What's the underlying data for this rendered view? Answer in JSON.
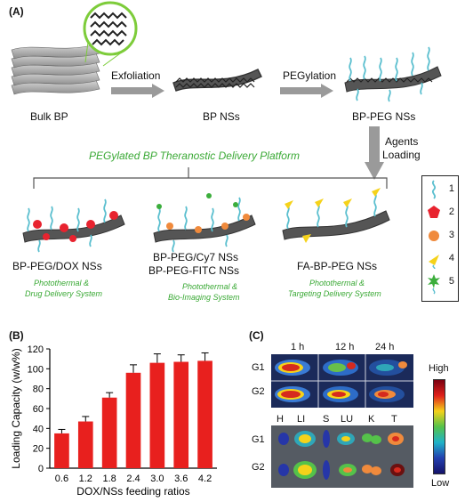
{
  "panel_a": {
    "label": "(A)",
    "stages": {
      "bulk": "Bulk BP",
      "nss": "BP NSs",
      "peg": "BP-PEG NSs"
    },
    "arrows": {
      "exfoliation": "Exfoliation",
      "pegylation": "PEGylation",
      "agents_line1": "Agents",
      "agents_line2": "Loading"
    },
    "platform_title": "PEGylated BP Theranostic Delivery Platform",
    "products": [
      {
        "name": "BP-PEG/DOX NSs",
        "name2": "",
        "desc1": "Photothermal &",
        "desc2": "Drug Delivery System"
      },
      {
        "name": "BP-PEG/Cy7 NSs",
        "name2": "BP-PEG-FITC NSs",
        "desc1": "Photothermal &",
        "desc2": "Bio-Imaging System"
      },
      {
        "name": "FA-BP-PEG NSs",
        "name2": "",
        "desc1": "Photothermal &",
        "desc2": "Targeting Delivery System"
      }
    ],
    "legend": [
      "1",
      "2",
      "3",
      "4",
      "5"
    ],
    "colors": {
      "arrow": "#9a9a9a",
      "green_text": "#3aa935",
      "peg_chain": "#5bbfcf",
      "dox": "#e8232f",
      "cy7": "#f08a3c",
      "fa": "#f5d21a",
      "fitc": "#3cae3c"
    }
  },
  "panel_b": {
    "label": "(B)"
  },
  "chart_data": {
    "type": "bar",
    "categories": [
      "0.6",
      "1.2",
      "1.8",
      "2.4",
      "3.0",
      "3.6",
      "4.2"
    ],
    "values": [
      35,
      47,
      71,
      96,
      106,
      107,
      108
    ],
    "errors": [
      4,
      5,
      5,
      8,
      9,
      7,
      8
    ],
    "xlabel": "DOX/NSs feeding ratios",
    "ylabel": "Loading Capacity (w/w%)",
    "ylim": [
      0,
      120
    ],
    "yticks": [
      "0",
      "20",
      "40",
      "60",
      "80",
      "100",
      "120"
    ],
    "bar_color": "#e8201e"
  },
  "panel_c": {
    "label": "(C)",
    "times": [
      "1 h",
      "12 h",
      "24 h"
    ],
    "groups": [
      "G1",
      "G2"
    ],
    "organs": [
      "H",
      "LI",
      "S",
      "LU",
      "K",
      "T"
    ],
    "scale_high": "High",
    "scale_low": "Low"
  }
}
